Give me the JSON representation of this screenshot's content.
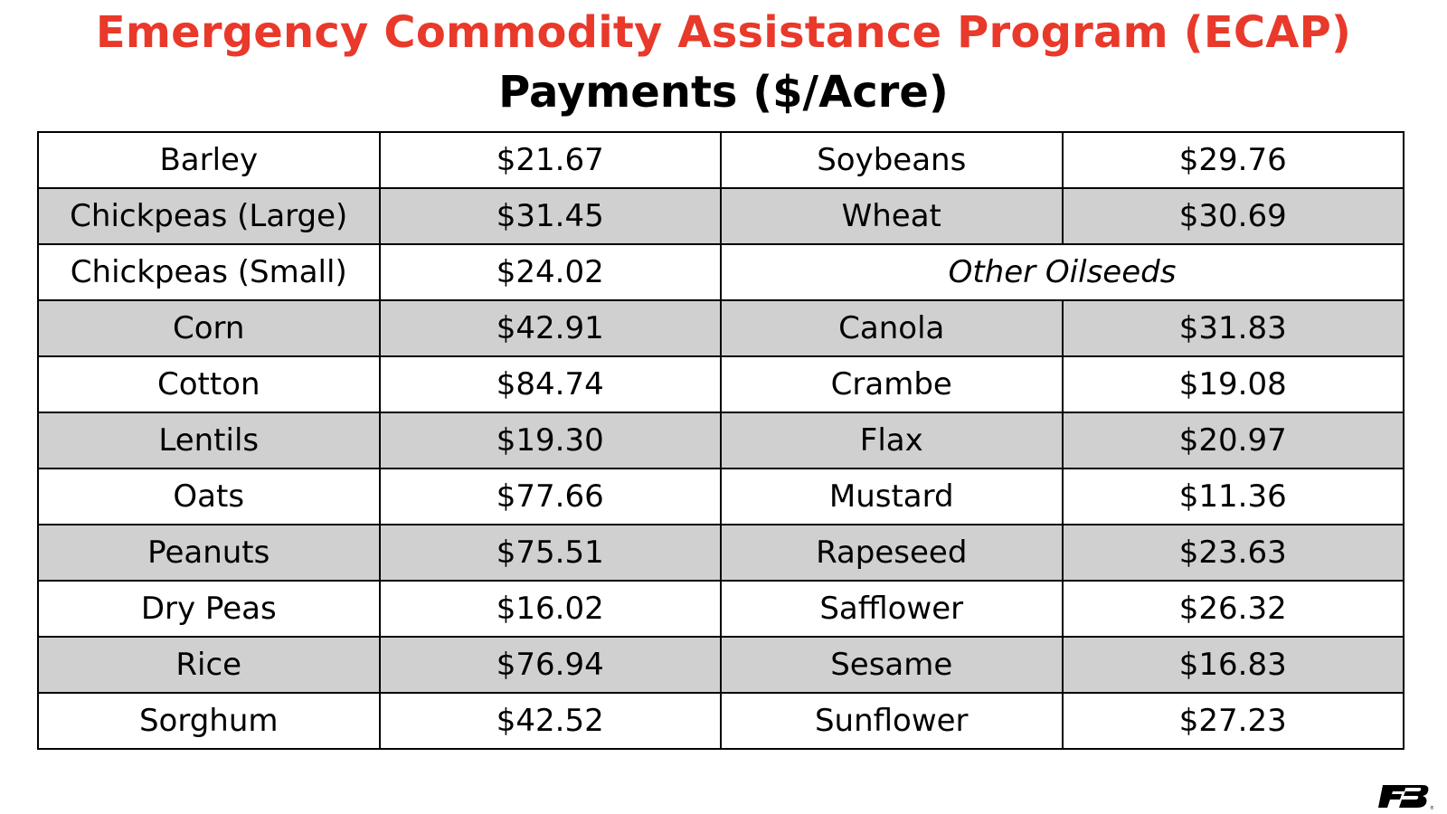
{
  "title": "Emergency Commodity Assistance Program (ECAP)",
  "subtitle": "Payments ($/Acre)",
  "colors": {
    "title": "#e8392b",
    "row_shade": "#d0d0d0",
    "border": "#000000"
  },
  "rows": [
    {
      "left_crop": "Barley",
      "left_payment": "$21.67",
      "right_crop": "Soybeans",
      "right_payment": "$29.76"
    },
    {
      "left_crop": "Chickpeas (Large)",
      "left_payment": "$31.45",
      "right_crop": "Wheat",
      "right_payment": "$30.69"
    },
    {
      "left_crop": "Chickpeas (Small)",
      "left_payment": "$24.02",
      "right_header": "Other Oilseeds"
    },
    {
      "left_crop": "Corn",
      "left_payment": "$42.91",
      "right_crop": "Canola",
      "right_payment": "$31.83"
    },
    {
      "left_crop": "Cotton",
      "left_payment": "$84.74",
      "right_crop": "Crambe",
      "right_payment": "$19.08"
    },
    {
      "left_crop": "Lentils",
      "left_payment": "$19.30",
      "right_crop": "Flax",
      "right_payment": "$20.97"
    },
    {
      "left_crop": "Oats",
      "left_payment": "$77.66",
      "right_crop": "Mustard",
      "right_payment": "$11.36"
    },
    {
      "left_crop": "Peanuts",
      "left_payment": "$75.51",
      "right_crop": "Rapeseed",
      "right_payment": "$23.63"
    },
    {
      "left_crop": "Dry Peas",
      "left_payment": "$16.02",
      "right_crop": "Safflower",
      "right_payment": "$26.32"
    },
    {
      "left_crop": "Rice",
      "left_payment": "$76.94",
      "right_crop": "Sesame",
      "right_payment": "$16.83"
    },
    {
      "left_crop": "Sorghum",
      "left_payment": "$42.52",
      "right_crop": "Sunflower",
      "right_payment": "$27.23"
    }
  ],
  "logo": {
    "icon": "farm-bureau-logo-icon",
    "text": "FB"
  }
}
